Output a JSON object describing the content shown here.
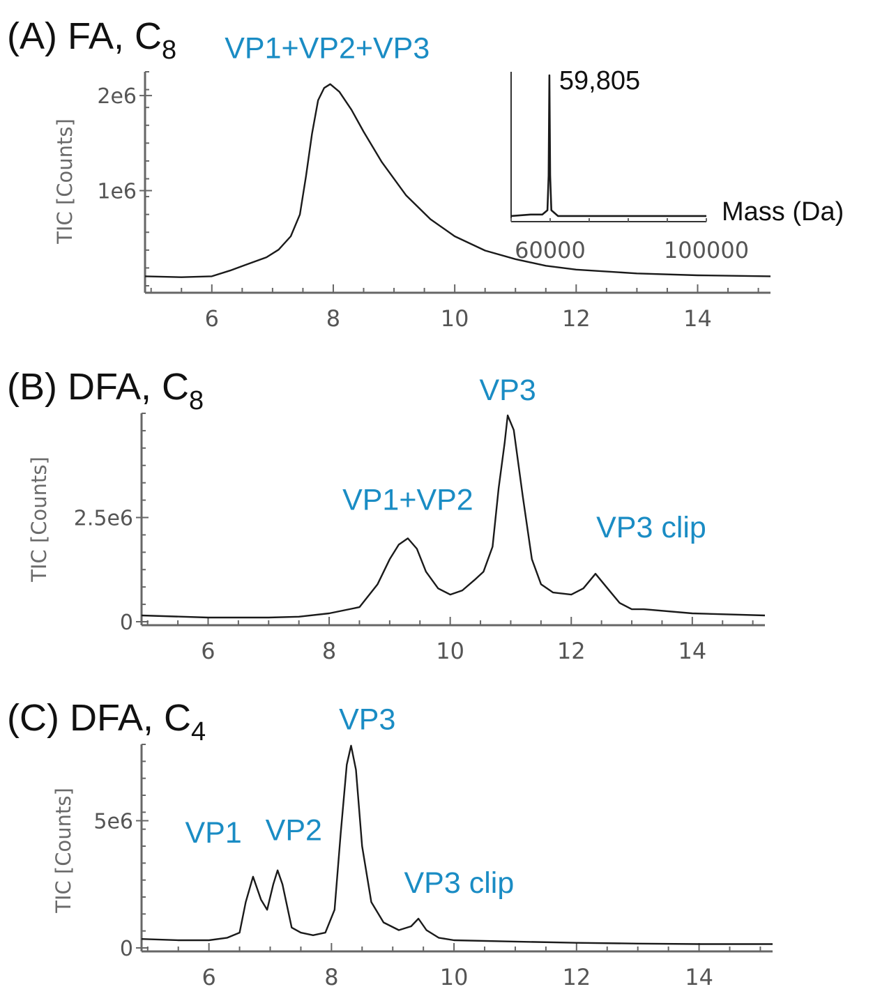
{
  "chart_data": [
    {
      "type": "line",
      "panel_label": "(A) FA, C",
      "panel_subscript": "8",
      "ylabel": "TIC [Counts]",
      "xlim": [
        4.9,
        15.2
      ],
      "ylim": [
        0,
        2250000
      ],
      "x_ticks": [
        6,
        8,
        10,
        12,
        14
      ],
      "x_tick_labels": [
        "6",
        "8",
        "10",
        "12",
        "14"
      ],
      "y_ticks": [
        1000000,
        2000000
      ],
      "y_tick_labels": [
        "1e6",
        "2e6"
      ],
      "annotations": [
        {
          "text": "VP1+VP2+VP3",
          "x": 7.9,
          "y": 2100000
        }
      ],
      "series": [
        {
          "x": [
            4.9,
            5.5,
            6.0,
            6.3,
            6.6,
            6.9,
            7.1,
            7.3,
            7.45,
            7.55,
            7.65,
            7.75,
            7.85,
            7.95,
            8.1,
            8.3,
            8.5,
            8.8,
            9.2,
            9.6,
            10.0,
            10.5,
            11.0,
            11.5,
            12.0,
            13.0,
            14.0,
            15.2
          ],
          "y": [
            100000,
            90000,
            100000,
            160000,
            230000,
            300000,
            380000,
            520000,
            750000,
            1150000,
            1600000,
            1950000,
            2080000,
            2120000,
            2040000,
            1850000,
            1620000,
            1300000,
            950000,
            700000,
            520000,
            370000,
            280000,
            210000,
            170000,
            130000,
            110000,
            100000
          ]
        }
      ],
      "inset": {
        "type": "line",
        "xlabel": "Mass (Da)",
        "xlim": [
          50000,
          100000
        ],
        "x_ticks": [
          60000,
          100000
        ],
        "x_tick_labels": [
          "60000",
          "100000"
        ],
        "annotations": [
          {
            "text": "59,805",
            "x": 59805
          }
        ],
        "series": [
          {
            "x": [
              50000,
              55000,
              58000,
              59300,
              59600,
              59805,
              60000,
              60300,
              62000,
              70000,
              80000,
              90000,
              100000
            ],
            "y": [
              0.02,
              0.03,
              0.03,
              0.06,
              0.3,
              1.0,
              0.3,
              0.06,
              0.02,
              0.02,
              0.02,
              0.02,
              0.02
            ]
          }
        ]
      }
    },
    {
      "type": "line",
      "panel_label": "(B) DFA, C",
      "panel_subscript": "8",
      "ylabel": "TIC [Counts]",
      "xlim": [
        4.9,
        15.2
      ],
      "ylim": [
        0,
        5000000
      ],
      "x_ticks": [
        6,
        8,
        10,
        12,
        14
      ],
      "x_tick_labels": [
        "6",
        "8",
        "10",
        "12",
        "14"
      ],
      "y_ticks": [
        0,
        2500000
      ],
      "y_tick_labels": [
        "0",
        "2.5e6"
      ],
      "annotations": [
        {
          "text": "VP1+VP2",
          "x": 9.3,
          "y": 2100000
        },
        {
          "text": "VP3",
          "x": 10.95,
          "y": 4900000
        },
        {
          "text": "VP3 clip",
          "x": 12.4,
          "y": 1100000
        }
      ],
      "series": [
        {
          "x": [
            4.9,
            6.0,
            7.0,
            7.5,
            8.0,
            8.5,
            8.8,
            9.0,
            9.15,
            9.3,
            9.45,
            9.6,
            9.8,
            10.0,
            10.2,
            10.4,
            10.55,
            10.7,
            10.8,
            10.9,
            10.95,
            11.05,
            11.2,
            11.35,
            11.5,
            11.7,
            12.0,
            12.2,
            12.4,
            12.6,
            12.8,
            13.0,
            13.2,
            14.0,
            15.2
          ],
          "y": [
            150000,
            100000,
            100000,
            120000,
            200000,
            350000,
            900000,
            1500000,
            1850000,
            2000000,
            1750000,
            1200000,
            800000,
            650000,
            750000,
            1000000,
            1200000,
            1800000,
            3200000,
            4300000,
            4950000,
            4600000,
            3000000,
            1500000,
            900000,
            700000,
            650000,
            800000,
            1150000,
            800000,
            450000,
            300000,
            300000,
            200000,
            150000
          ]
        }
      ]
    },
    {
      "type": "line",
      "panel_label": "(C) DFA, C",
      "panel_subscript": "4",
      "ylabel": "TIC [Counts]",
      "xlim": [
        4.9,
        15.2
      ],
      "ylim": [
        0,
        8000000
      ],
      "x_ticks": [
        6,
        8,
        10,
        12,
        14
      ],
      "x_tick_labels": [
        "6",
        "8",
        "10",
        "12",
        "14"
      ],
      "y_ticks": [
        0,
        5000000
      ],
      "y_tick_labels": [
        "0",
        "5e6"
      ],
      "annotations": [
        {
          "text": "VP1",
          "x": 6.7,
          "y": 2900000
        },
        {
          "text": "VP2",
          "x": 7.1,
          "y": 3000000
        },
        {
          "text": "VP3",
          "x": 8.3,
          "y": 7900000
        },
        {
          "text": "VP3 clip",
          "x": 9.4,
          "y": 1200000
        }
      ],
      "series": [
        {
          "x": [
            4.9,
            5.5,
            6.0,
            6.3,
            6.5,
            6.6,
            6.72,
            6.85,
            6.95,
            7.05,
            7.12,
            7.2,
            7.35,
            7.5,
            7.7,
            7.9,
            8.05,
            8.15,
            8.25,
            8.32,
            8.4,
            8.5,
            8.65,
            8.85,
            9.1,
            9.3,
            9.42,
            9.55,
            9.75,
            10.0,
            11.0,
            12.0,
            13.0,
            14.0,
            15.2
          ],
          "y": [
            350000,
            300000,
            300000,
            400000,
            600000,
            1800000,
            2800000,
            1900000,
            1500000,
            2500000,
            3050000,
            2500000,
            800000,
            600000,
            500000,
            600000,
            1500000,
            4500000,
            7200000,
            7950000,
            7000000,
            4000000,
            1800000,
            1000000,
            700000,
            850000,
            1150000,
            700000,
            400000,
            300000,
            250000,
            200000,
            170000,
            150000,
            150000
          ]
        }
      ]
    }
  ]
}
